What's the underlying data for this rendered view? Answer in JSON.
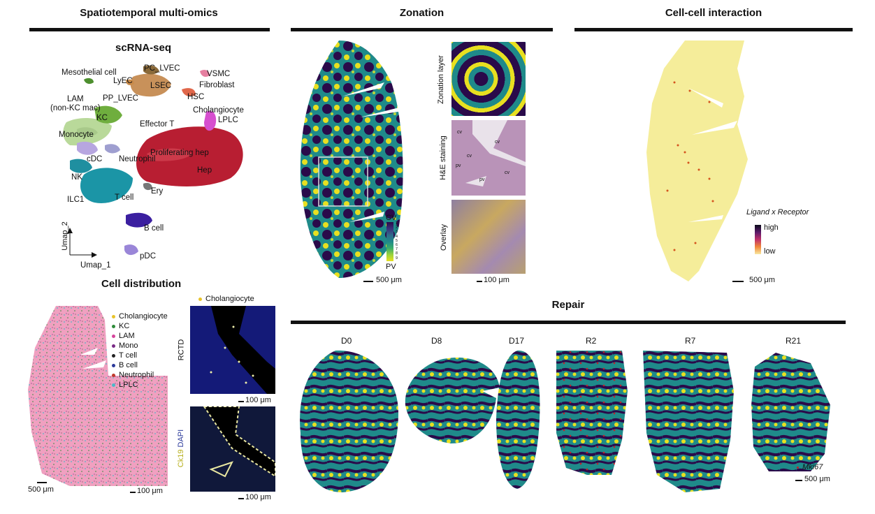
{
  "sections": {
    "multiomics": "Spatiotemporal multi-omics",
    "zonation": "Zonation",
    "interaction": "Cell-cell interaction",
    "repair": "Repair"
  },
  "umap": {
    "title": "scRNA-seq",
    "axis_y": "Umap_2",
    "axis_x": "Umap_1",
    "clusters": [
      {
        "label": "Mesothelial cell",
        "color": "#4d8f2e"
      },
      {
        "label": "PC_LVEC",
        "color": "#8a6a3a"
      },
      {
        "label": "LyEC",
        "color": "#c98b4a"
      },
      {
        "label": "LSEC",
        "color": "#c8915a"
      },
      {
        "label": "PP_LVEC",
        "color": "#b98855"
      },
      {
        "label": "VSMC",
        "color": "#e67fa0"
      },
      {
        "label": "Fibroblast",
        "color": "#e0674a"
      },
      {
        "label": "HSC",
        "color": "#ef7a3a"
      },
      {
        "label": "LAM\n(non-KC mac)",
        "color": "#a8c98a"
      },
      {
        "label": "KC",
        "color": "#6fae3e"
      },
      {
        "label": "Cholangiocyte",
        "color": "#d64fcf"
      },
      {
        "label": "LPLC",
        "color": "#c347d8"
      },
      {
        "label": "Effector T",
        "color": "#2aa7b8"
      },
      {
        "label": "Monocyte",
        "color": "#b9d99a"
      },
      {
        "label": "cDC",
        "color": "#b7a6e0"
      },
      {
        "label": "Neutrophil",
        "color": "#9f9fd0"
      },
      {
        "label": "Proliferating hep",
        "color": "#cc3a4a"
      },
      {
        "label": "Hep",
        "color": "#b81e32"
      },
      {
        "label": "NK",
        "color": "#1f8fa0"
      },
      {
        "label": "Ery",
        "color": "#777777"
      },
      {
        "label": "ILC1",
        "color": "#2b9aa8"
      },
      {
        "label": "T cell",
        "color": "#1b95a6"
      },
      {
        "label": "B cell",
        "color": "#3b1fa0"
      },
      {
        "label": "pDC",
        "color": "#9a86d8"
      }
    ]
  },
  "cell_distribution": {
    "title": "Cell distribution",
    "legend": [
      {
        "label": "Cholangiocyte",
        "color": "#e8c32a"
      },
      {
        "label": "KC",
        "color": "#2e8b3a"
      },
      {
        "label": "LAM",
        "color": "#d6459c"
      },
      {
        "label": "Mono",
        "color": "#7a2b86"
      },
      {
        "label": "T cell",
        "color": "#222222"
      },
      {
        "label": "B cell",
        "color": "#2b3a9a"
      },
      {
        "label": "Neutrophil",
        "color": "#c0392b"
      },
      {
        "label": "LPLC",
        "color": "#4bb8c8"
      }
    ],
    "scale_left": "500 μm",
    "scale_inset": "100 μm",
    "rctd_label": "RCTD",
    "rctd_scale": "100 μm",
    "rctd_legend": "Cholangiocyte",
    "ck19_label": "Ck19",
    "dapi_label": "DAPI",
    "ck19_scale": "100 μm"
  },
  "zonation": {
    "cv_label": "CV",
    "pv_label": "PV",
    "ticks": [
      "1",
      "2",
      "3",
      "4",
      "5",
      "6",
      "7",
      "8",
      "9"
    ],
    "scale_main": "500 μm",
    "scale_panels": "100 μm",
    "panels": [
      "Zonation layer",
      "H&E staining",
      "Overlay"
    ],
    "he_marks": [
      "cv",
      "cv",
      "cv",
      "pv",
      "cv",
      "pv",
      "cv",
      "pv",
      "cv",
      "pv",
      "cv"
    ]
  },
  "interaction": {
    "legend_title": "Ligand x Receptor",
    "high": "high",
    "low": "low",
    "scale": "500 μm"
  },
  "repair": {
    "timepoints": [
      "D0",
      "D8",
      "D17",
      "R2",
      "R7",
      "R21"
    ],
    "marker": "Mki67",
    "scale": "500 μm"
  },
  "colors": {
    "zonation_dark": "#2a0a4a",
    "zonation_mid": "#1f8a8a",
    "zonation_light": "#e8e020",
    "hep_red": "#b81e32",
    "tissue_pink": "#f0a0c0"
  }
}
